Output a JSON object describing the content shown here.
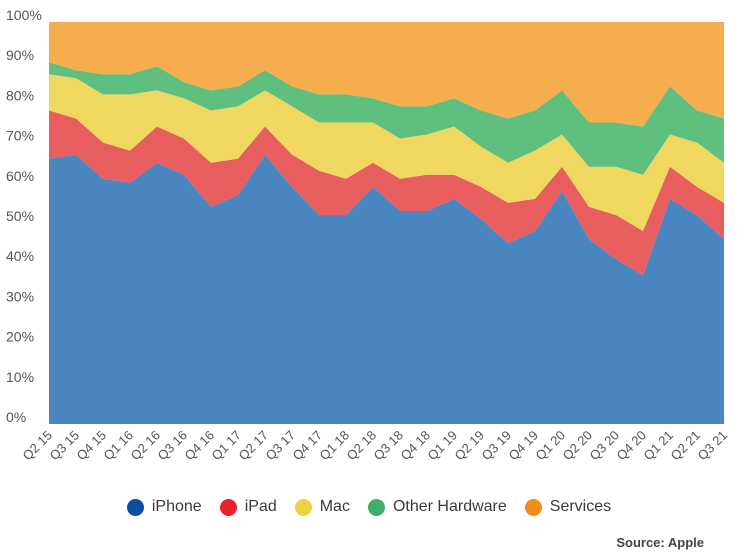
{
  "chart_data": {
    "type": "area",
    "stacked": true,
    "title": "",
    "xlabel": "",
    "ylabel": "",
    "ylim": [
      0,
      100
    ],
    "grid": false,
    "legend_position": "bottom",
    "y_ticks": [
      "0%",
      "10%",
      "20%",
      "30%",
      "40%",
      "50%",
      "60%",
      "70%",
      "80%",
      "90%",
      "100%"
    ],
    "categories": [
      "Q2 15",
      "Q3 15",
      "Q4 15",
      "Q1 16",
      "Q2 16",
      "Q3 16",
      "Q4 16",
      "Q1 17",
      "Q2 17",
      "Q3 17",
      "Q4 17",
      "Q1 18",
      "Q2 18",
      "Q3 18",
      "Q4 18",
      "Q1 19",
      "Q2 19",
      "Q3 19",
      "Q4 19",
      "Q1 20",
      "Q2 20",
      "Q3 20",
      "Q4 20",
      "Q1 21",
      "Q2 21",
      "Q3 21"
    ],
    "series": [
      {
        "name": "iPhone",
        "color": "#4a86c0",
        "values": [
          66,
          67,
          61,
          60,
          65,
          62,
          54,
          57,
          67,
          59,
          52,
          52,
          59,
          53,
          53,
          56,
          51,
          45,
          48,
          58,
          46,
          41,
          37,
          56,
          52,
          46
        ]
      },
      {
        "name": "iPad",
        "color": "#e85d5d",
        "values": [
          12,
          9,
          9,
          8,
          9,
          9,
          11,
          9,
          7,
          8,
          11,
          9,
          6,
          8,
          9,
          6,
          8,
          10,
          8,
          6,
          8,
          11,
          11,
          8,
          7,
          9
        ]
      },
      {
        "name": "Mac",
        "color": "#f0d860",
        "values": [
          9,
          10,
          12,
          14,
          9,
          10,
          13,
          13,
          9,
          12,
          12,
          14,
          10,
          10,
          10,
          12,
          10,
          10,
          12,
          8,
          10,
          12,
          14,
          8,
          11,
          10
        ]
      },
      {
        "name": "Other Hardware",
        "color": "#5fbf7f",
        "values": [
          3,
          2,
          5,
          5,
          6,
          4,
          5,
          5,
          5,
          5,
          7,
          7,
          6,
          8,
          7,
          7,
          9,
          11,
          10,
          11,
          11,
          11,
          12,
          12,
          8,
          11
        ]
      },
      {
        "name": "Services",
        "color": "#f5ad4e",
        "values": [
          10,
          12,
          13,
          13,
          11,
          15,
          17,
          16,
          12,
          16,
          18,
          18,
          19,
          21,
          21,
          19,
          22,
          24,
          22,
          17,
          25,
          25,
          26,
          16,
          22,
          24
        ]
      }
    ]
  },
  "legend": {
    "items": [
      {
        "label": "iPhone",
        "color": "#0b4ea2"
      },
      {
        "label": "iPad",
        "color": "#e8232a"
      },
      {
        "label": "Mac",
        "color": "#ecd23c"
      },
      {
        "label": "Other Hardware",
        "color": "#3fae6a"
      },
      {
        "label": "Services",
        "color": "#f28e16"
      }
    ]
  },
  "source": "Source: Apple"
}
